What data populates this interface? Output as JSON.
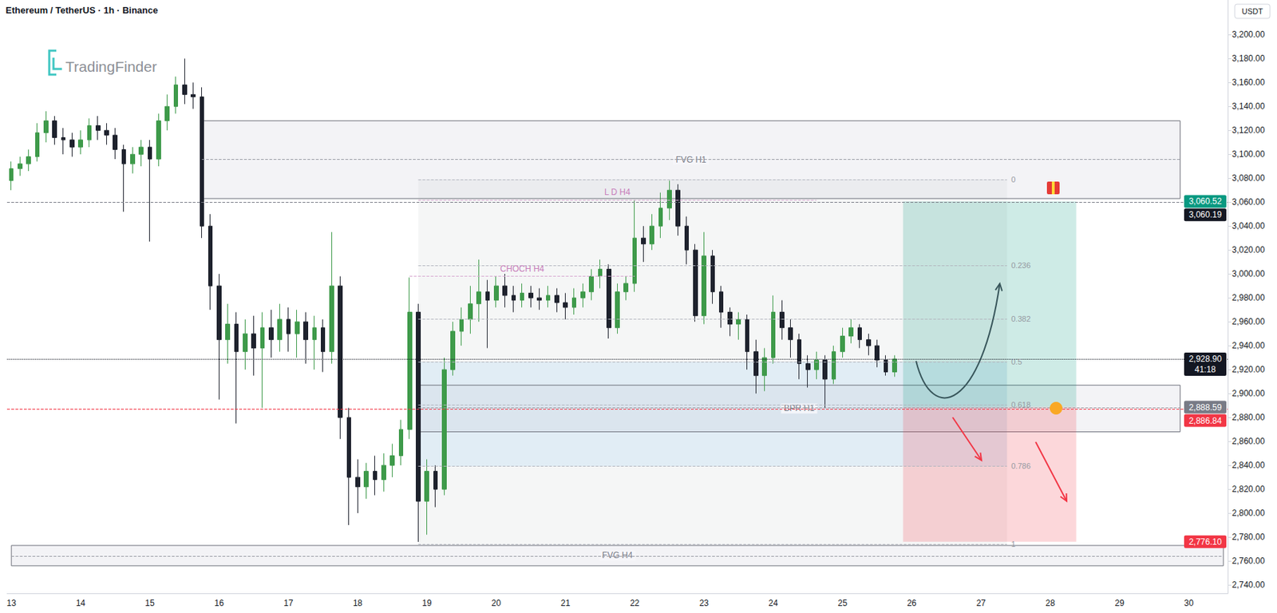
{
  "chart_data": {
    "type": "candlestick",
    "title": "Ethereum / TetherUS · 1h · Binance",
    "watermark": "TradingFinder",
    "currency": "USDT",
    "grid": false,
    "categories": [
      "13",
      null,
      null,
      null,
      null,
      null,
      null,
      null,
      "14",
      null,
      null,
      null,
      null,
      null,
      null,
      null,
      "15",
      null,
      null,
      null,
      null,
      null,
      null,
      null,
      "16",
      null,
      null,
      null,
      null,
      null,
      null,
      null,
      "17",
      null,
      null,
      null,
      null,
      null,
      null,
      null,
      "18",
      null,
      null,
      null,
      null,
      null,
      null,
      null,
      "19",
      null,
      null,
      null,
      null,
      null,
      null,
      null,
      "20",
      null,
      null,
      null,
      null,
      null,
      null,
      null,
      "21",
      null,
      null,
      null,
      null,
      null,
      null,
      null,
      "22",
      null,
      null,
      null,
      null,
      null,
      null,
      null,
      "23",
      null,
      null,
      null,
      null,
      null,
      null,
      null,
      "24",
      null,
      null,
      null,
      null,
      null,
      null,
      null,
      "25",
      null,
      null,
      null,
      null,
      null,
      null,
      null,
      "26",
      null,
      null,
      null,
      null,
      null,
      null,
      null,
      "27",
      null,
      null,
      null,
      null,
      null,
      null,
      null,
      "28",
      null,
      null,
      null,
      null,
      null,
      null,
      null,
      "29",
      null,
      null,
      null,
      null,
      null,
      null,
      null,
      "30",
      null,
      null,
      null,
      null
    ],
    "values": [
      [
        3078,
        3094,
        3070,
        3088
      ],
      [
        3088,
        3098,
        3082,
        3092
      ],
      [
        3092,
        3104,
        3086,
        3098
      ],
      [
        3098,
        3126,
        3094,
        3118
      ],
      [
        3118,
        3136,
        3110,
        3128
      ],
      [
        3128,
        3132,
        3108,
        3114
      ],
      [
        3114,
        3122,
        3100,
        3112
      ],
      [
        3112,
        3118,
        3098,
        3106
      ],
      [
        3106,
        3120,
        3100,
        3112
      ],
      [
        3112,
        3130,
        3106,
        3124
      ],
      [
        3124,
        3132,
        3112,
        3120
      ],
      [
        3120,
        3126,
        3108,
        3116
      ],
      [
        3116,
        3122,
        3096,
        3104
      ],
      [
        3104,
        3108,
        3052,
        3092
      ],
      [
        3092,
        3106,
        3084,
        3100
      ],
      [
        3100,
        3112,
        3090,
        3106
      ],
      [
        3106,
        3112,
        3027,
        3096
      ],
      [
        3096,
        3134,
        3090,
        3128
      ],
      [
        3128,
        3150,
        3120,
        3140
      ],
      [
        3140,
        3165,
        3134,
        3158
      ],
      [
        3158,
        3180,
        3142,
        3150
      ],
      [
        3150,
        3160,
        3138,
        3148
      ],
      [
        3148,
        3156,
        3030,
        3040
      ],
      [
        3040,
        3050,
        2970,
        2990
      ],
      [
        2990,
        3000,
        2895,
        2945
      ],
      [
        2945,
        2975,
        2925,
        2958
      ],
      [
        2958,
        2968,
        2875,
        2935
      ],
      [
        2935,
        2962,
        2920,
        2950
      ],
      [
        2950,
        2965,
        2915,
        2938
      ],
      [
        2938,
        2968,
        2888,
        2955
      ],
      [
        2955,
        2970,
        2930,
        2945
      ],
      [
        2945,
        2975,
        2935,
        2962
      ],
      [
        2962,
        2972,
        2935,
        2950
      ],
      [
        2950,
        2970,
        2930,
        2960
      ],
      [
        2960,
        2968,
        2925,
        2945
      ],
      [
        2945,
        2965,
        2920,
        2955
      ],
      [
        2955,
        2962,
        2918,
        2935
      ],
      [
        2935,
        3035,
        2925,
        2990
      ],
      [
        2990,
        2998,
        2862,
        2880
      ],
      [
        2880,
        2888,
        2790,
        2830
      ],
      [
        2830,
        2845,
        2800,
        2822
      ],
      [
        2822,
        2842,
        2812,
        2835
      ],
      [
        2835,
        2848,
        2815,
        2828
      ],
      [
        2828,
        2850,
        2818,
        2840
      ],
      [
        2840,
        2858,
        2830,
        2848
      ],
      [
        2848,
        2878,
        2840,
        2870
      ],
      [
        2870,
        2997,
        2862,
        2968
      ],
      [
        2968,
        2975,
        2776,
        2810
      ],
      [
        2810,
        2845,
        2782,
        2835
      ],
      [
        2835,
        2840,
        2805,
        2820
      ],
      [
        2820,
        2930,
        2815,
        2920
      ],
      [
        2920,
        2960,
        2915,
        2952
      ],
      [
        2952,
        2972,
        2940,
        2962
      ],
      [
        2962,
        2990,
        2950,
        2975
      ],
      [
        2975,
        3012,
        2960,
        2985
      ],
      [
        2985,
        2995,
        2938,
        2978
      ],
      [
        2978,
        2998,
        2972,
        2990
      ],
      [
        2990,
        3000,
        2972,
        2982
      ],
      [
        2982,
        2990,
        2968,
        2978
      ],
      [
        2978,
        2992,
        2972,
        2984
      ],
      [
        2984,
        2990,
        2972,
        2980
      ],
      [
        2980,
        2988,
        2970,
        2978
      ],
      [
        2978,
        2990,
        2972,
        2982
      ],
      [
        2982,
        2988,
        2968,
        2976
      ],
      [
        2976,
        2984,
        2962,
        2972
      ],
      [
        2972,
        2988,
        2966,
        2980
      ],
      [
        2980,
        2992,
        2972,
        2985
      ],
      [
        2985,
        3004,
        2978,
        2998
      ],
      [
        2998,
        3012,
        2988,
        3004
      ],
      [
        3004,
        3008,
        2946,
        2955
      ],
      [
        2955,
        2992,
        2950,
        2985
      ],
      [
        2985,
        2998,
        2978,
        2992
      ],
      [
        2992,
        3062,
        2985,
        3030
      ],
      [
        3030,
        3040,
        3010,
        3025
      ],
      [
        3025,
        3050,
        3020,
        3040
      ],
      [
        3040,
        3068,
        3030,
        3055
      ],
      [
        3055,
        3078,
        3045,
        3070
      ],
      [
        3070,
        3075,
        3032,
        3040
      ],
      [
        3040,
        3048,
        3008,
        3020
      ],
      [
        3020,
        3025,
        2960,
        2965
      ],
      [
        2965,
        3035,
        2958,
        3015
      ],
      [
        3015,
        3020,
        2975,
        2985
      ],
      [
        2985,
        2990,
        2955,
        2968
      ],
      [
        2968,
        2972,
        2948,
        2958
      ],
      [
        2958,
        2968,
        2945,
        2962
      ],
      [
        2962,
        2966,
        2920,
        2935
      ],
      [
        2935,
        2945,
        2900,
        2915
      ],
      [
        2915,
        2938,
        2902,
        2930
      ],
      [
        2930,
        2982,
        2925,
        2968
      ],
      [
        2968,
        2978,
        2945,
        2955
      ],
      [
        2955,
        2962,
        2930,
        2945
      ],
      [
        2945,
        2950,
        2912,
        2925
      ],
      [
        2925,
        2932,
        2905,
        2920
      ],
      [
        2920,
        2935,
        2912,
        2928
      ],
      [
        2928,
        2932,
        2888,
        2912
      ],
      [
        2912,
        2940,
        2908,
        2935
      ],
      [
        2935,
        2955,
        2930,
        2948
      ],
      [
        2948,
        2962,
        2942,
        2955
      ],
      [
        2955,
        2958,
        2938,
        2945
      ],
      [
        2945,
        2950,
        2932,
        2940
      ],
      [
        2940,
        2945,
        2922,
        2928
      ],
      [
        2928,
        2932,
        2915,
        2918
      ],
      [
        2918,
        2932,
        2914,
        2928.9
      ],
      null,
      null,
      null,
      null,
      null,
      null,
      null,
      null,
      null,
      null,
      null,
      null,
      null,
      null,
      null,
      null,
      null,
      null,
      null,
      null,
      null,
      null,
      null,
      null,
      null,
      null,
      null,
      null,
      null,
      null,
      null,
      null,
      null,
      null,
      null,
      null,
      null,
      null
    ],
    "ylim": [
      2733,
      3229
    ],
    "yticks": [
      {
        "value": 2740,
        "label": "2,740.00"
      },
      {
        "value": 2760,
        "label": "2,760.00"
      },
      {
        "value": 2780,
        "label": "2,780.00"
      },
      {
        "value": 2800,
        "label": "2,800.00"
      },
      {
        "value": 2820,
        "label": "2,820.00"
      },
      {
        "value": 2840,
        "label": "2,840.00"
      },
      {
        "value": 2860,
        "label": "2,860.00"
      },
      {
        "value": 2880,
        "label": "2,880.00"
      },
      {
        "value": 2900,
        "label": "2,900.00"
      },
      {
        "value": 2920,
        "label": "2,920.00"
      },
      {
        "value": 2940,
        "label": "2,940.00"
      },
      {
        "value": 2960,
        "label": "2,960.00"
      },
      {
        "value": 2980,
        "label": "2,980.00"
      },
      {
        "value": 3000,
        "label": "3,000.00"
      },
      {
        "value": 3020,
        "label": "3,020.00"
      },
      {
        "value": 3040,
        "label": "3,040.00"
      },
      {
        "value": 3060,
        "label": "3,060.00"
      },
      {
        "value": 3080,
        "label": "3,080.00"
      },
      {
        "value": 3100,
        "label": "3,100.00"
      },
      {
        "value": 3120,
        "label": "3,120.00"
      },
      {
        "value": 3140,
        "label": "3,140.00"
      },
      {
        "value": 3160,
        "label": "3,160.00"
      },
      {
        "value": 3180,
        "label": "3,180.00"
      },
      {
        "value": 3200,
        "label": "3,200.00"
      }
    ],
    "zones": [
      {
        "label": "FVG H1",
        "x0": 22,
        "x1": 135,
        "y0": 3063,
        "y1": 3128,
        "mid": 3096
      },
      {
        "label": "BPR H1",
        "x0": 47,
        "x1": 135,
        "y0": 2868,
        "y1": 2907,
        "mid": 2888
      },
      {
        "label": "FVG H4",
        "x0": 0,
        "x1": 140,
        "y0": 2756,
        "y1": 2773,
        "mid": 2764
      }
    ],
    "fib": {
      "x0": 47,
      "x1": 115,
      "levels": [
        {
          "ratio": 0,
          "price": 3079
        },
        {
          "ratio": 0.236,
          "price": 3007
        },
        {
          "ratio": 0.382,
          "price": 2962.5
        },
        {
          "ratio": 0.5,
          "price": 2926.5
        },
        {
          "ratio": 0.618,
          "price": 2890.5
        },
        {
          "ratio": 0.786,
          "price": 2839.3
        },
        {
          "ratio": 1,
          "price": 2774
        }
      ]
    },
    "levels": [
      {
        "label": "CHOCH H4",
        "x0": 46,
        "x1": 72,
        "price": 2998
      },
      {
        "label": "L D H4",
        "x0": 47,
        "x1": 93,
        "price": 3062
      }
    ],
    "position": {
      "x0": 103,
      "x1": 123,
      "entry": 2888.59,
      "target": 3060.52,
      "stop": 2776.1
    },
    "lines": [
      {
        "value": 3060.19,
        "color": "#787b86",
        "line_style": "dashed"
      },
      {
        "value": 2928.9,
        "color": "#131722",
        "line_style": "dotted"
      },
      {
        "value": 2886.84,
        "color": "#f23645",
        "line_style": "dashed"
      }
    ],
    "price_tags": [
      {
        "value": 3060.52,
        "label": "3,060.52",
        "color": "#089981"
      },
      {
        "value": 3060.19,
        "label": "3,060.19",
        "color": "#131722"
      },
      {
        "value": 2928.9,
        "label": "2,928.90",
        "color": "#131722",
        "timer": "41:18"
      },
      {
        "value": 2888.59,
        "label": "2,888.59",
        "color": "#787b86"
      },
      {
        "value": 2886.84,
        "label": "2,886.84",
        "color": "#f23645"
      },
      {
        "value": 2776.1,
        "label": "2,776.10",
        "color": "#f23645"
      }
    ]
  }
}
